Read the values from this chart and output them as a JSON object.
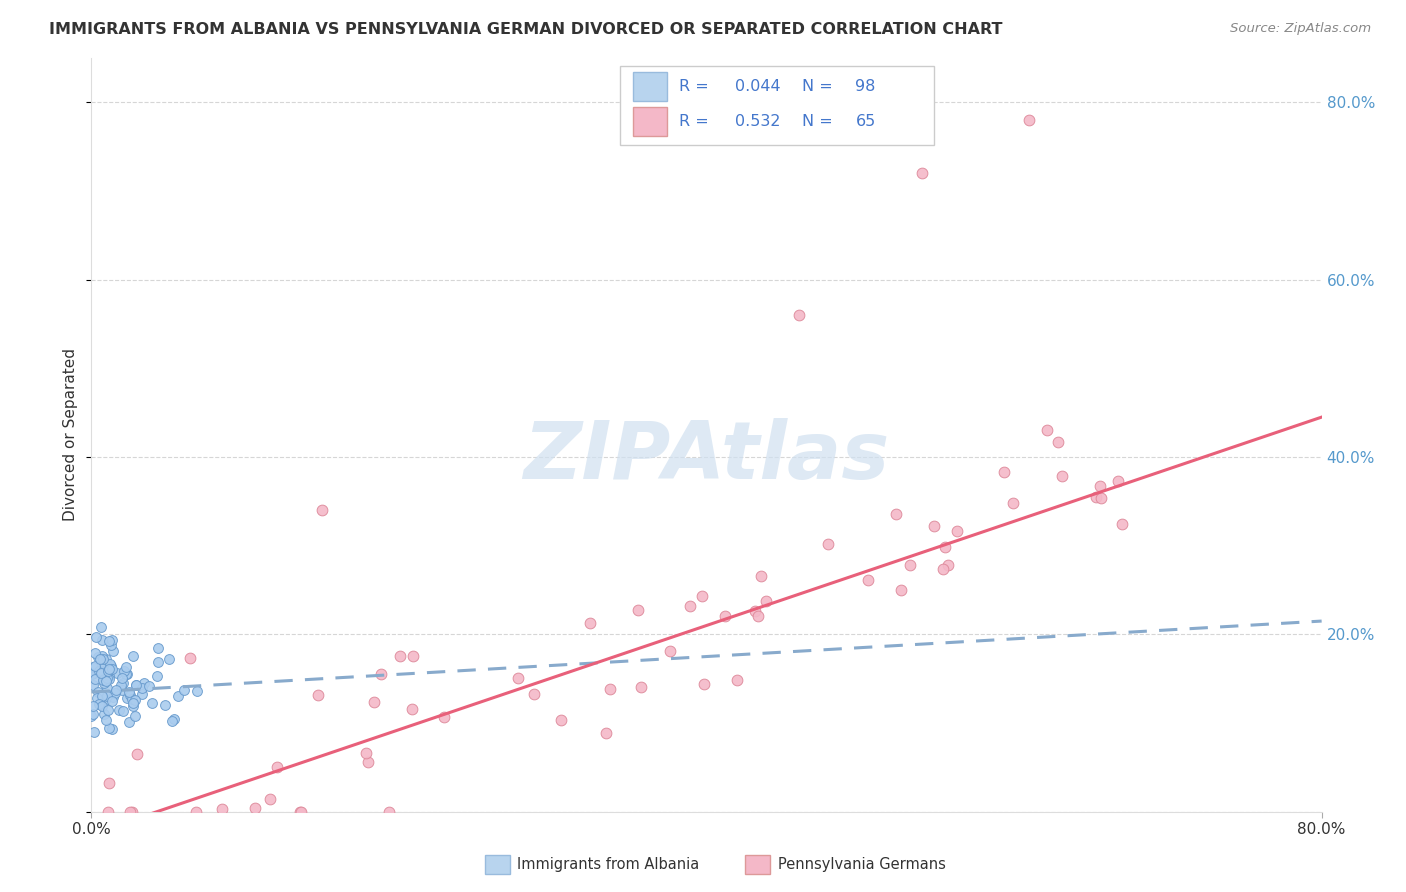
{
  "title": "IMMIGRANTS FROM ALBANIA VS PENNSYLVANIA GERMAN DIVORCED OR SEPARATED CORRELATION CHART",
  "source_text": "Source: ZipAtlas.com",
  "ylabel": "Divorced or Separated",
  "watermark": "ZIPAtlas",
  "x_min": 0.0,
  "x_max": 0.8,
  "y_min": 0.0,
  "y_max": 0.85,
  "series_albania": {
    "label": "Immigrants from Albania",
    "R": 0.044,
    "N": 98,
    "color_scatter": "#aaccee",
    "color_edge": "#6699cc",
    "color_line": "#88aacc",
    "color_legend_fill": "#b8d4ee",
    "color_legend_edge": "#99bbdd"
  },
  "series_pa_german": {
    "label": "Pennsylvania Germans",
    "R": 0.532,
    "N": 65,
    "color_scatter": "#f4b8c8",
    "color_edge": "#dd8899",
    "color_line": "#e8607a",
    "color_legend_fill": "#f4b8c8",
    "color_legend_edge": "#dd9999"
  },
  "legend_text_color": "#4477cc",
  "title_color": "#333333",
  "background_color": "#ffffff",
  "plot_background": "#ffffff",
  "grid_color": "#cccccc",
  "right_axis_color": "#5599cc",
  "watermark_color": "#d0e0f0"
}
